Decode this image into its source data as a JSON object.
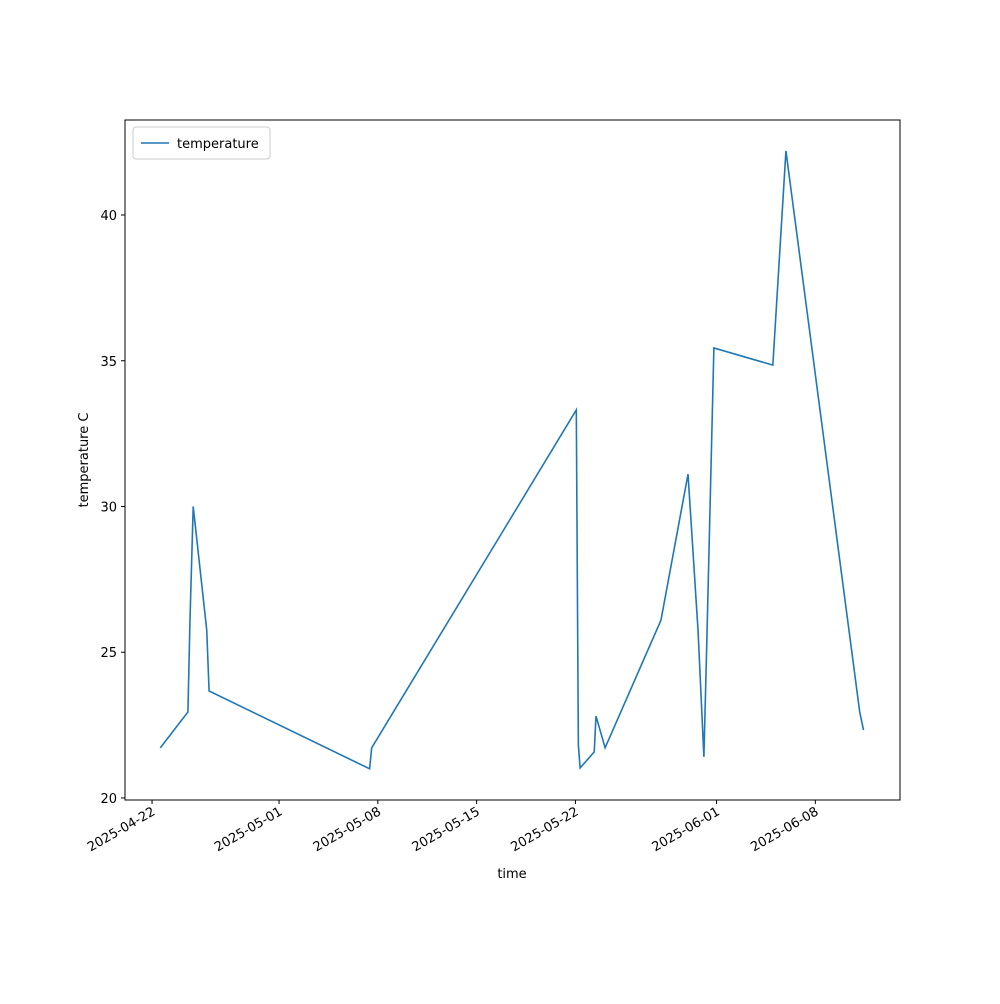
{
  "chart_data": {
    "type": "line",
    "xlabel": "time",
    "ylabel": "temperature C",
    "x": [
      "2025-04-22T14:00",
      "2025-04-24T13:00",
      "2025-04-24T16:30",
      "2025-04-24T22:00",
      "2025-04-25T21:00",
      "2025-04-26T01:00",
      "2025-05-07T10:00",
      "2025-05-07T13:30",
      "2025-05-22T01:30",
      "2025-05-22T05:00",
      "2025-05-22T08:00",
      "2025-05-23T08:00",
      "2025-05-23T11:00",
      "2025-05-24T02:30",
      "2025-05-28T01:30",
      "2025-05-29T23:30",
      "2025-05-30T16:30",
      "2025-05-31T02:30",
      "2025-05-31T07:30",
      "2025-05-31T19:30",
      "2025-06-04T23:45",
      "2025-06-05T22:00",
      "2025-06-11T03:30",
      "2025-06-11T10:00"
    ],
    "series": [
      {
        "name": "temperature",
        "color": "#1f77b4",
        "values": [
          21.72,
          22.95,
          26.1,
          30.0,
          25.76,
          23.67,
          21.0,
          21.72,
          33.31,
          21.82,
          21.03,
          21.58,
          22.81,
          21.72,
          26.1,
          31.11,
          25.76,
          21.41,
          25.4,
          35.44,
          34.85,
          42.2,
          22.95,
          22.33
        ]
      }
    ],
    "xlim": [
      "2025-04-20T02:00",
      "2025-06-14T00:00"
    ],
    "xticks": [
      "2025-04-22",
      "2025-05-01",
      "2025-05-08",
      "2025-05-15",
      "2025-05-22",
      "2025-06-01",
      "2025-06-08"
    ],
    "ylim": [
      19.93,
      43.26
    ],
    "yticks": [
      20,
      25,
      30,
      35,
      40
    ],
    "legend": "upper left"
  }
}
